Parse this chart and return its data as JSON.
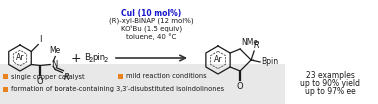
{
  "bg_color": "#ffffff",
  "legend_bg": "#e8e8e8",
  "orange_color": "#E8821E",
  "blue_color": "#1414CC",
  "black_color": "#1a1a1a",
  "arrow_color": "#333333",
  "reaction_line1": "CuI (10 mol%)",
  "reaction_line2": "(R)-xyl-BINAP (12 mol%)",
  "reaction_line3": "KOᵗBu (1.5 equiv)",
  "reaction_line4": "toluene, 40 °C",
  "legend1": "single copper catalyst",
  "legend2": "mild reaction conditions",
  "legend3": "formation of borate-containing 3,3′-disubstituted isoindolinones",
  "result_line1": "23 examples",
  "result_line2": "up to 90% yield",
  "result_line3": "up to 97% ee",
  "figwidth": 3.78,
  "figheight": 1.04,
  "dpi": 100
}
